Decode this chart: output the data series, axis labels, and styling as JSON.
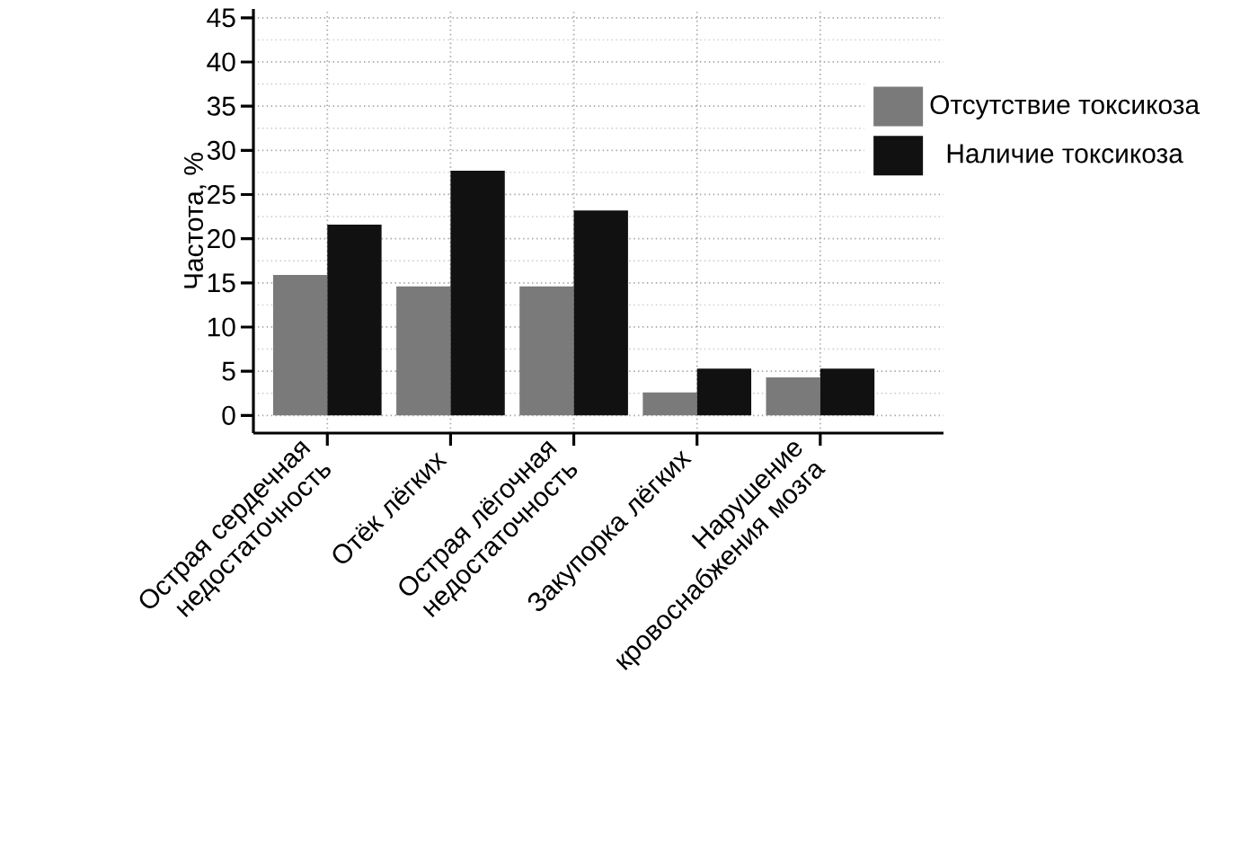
{
  "chart_data": {
    "type": "bar",
    "ylabel": "Частота, %",
    "categories": [
      "Острая сердечная недостаточность",
      "Отёк лёгких",
      "Острая лёгочная недостаточность",
      "Закупорка лёгких",
      "Нарушение кровоснабжения мозга"
    ],
    "series": [
      {
        "name": "Отсутствие токсикоза",
        "color": "#7a7a7a",
        "values": [
          15.9,
          14.6,
          14.6,
          2.6,
          4.3
        ]
      },
      {
        "name": "Наличие токсикоза",
        "color": "#111111",
        "values": [
          21.6,
          27.7,
          23.2,
          5.3,
          5.3
        ]
      }
    ],
    "ylim": [
      -2,
      46
    ],
    "yticks": [
      0,
      5,
      10,
      15,
      20,
      25,
      30,
      35,
      40,
      45
    ],
    "grid": true,
    "legend": "top right"
  }
}
